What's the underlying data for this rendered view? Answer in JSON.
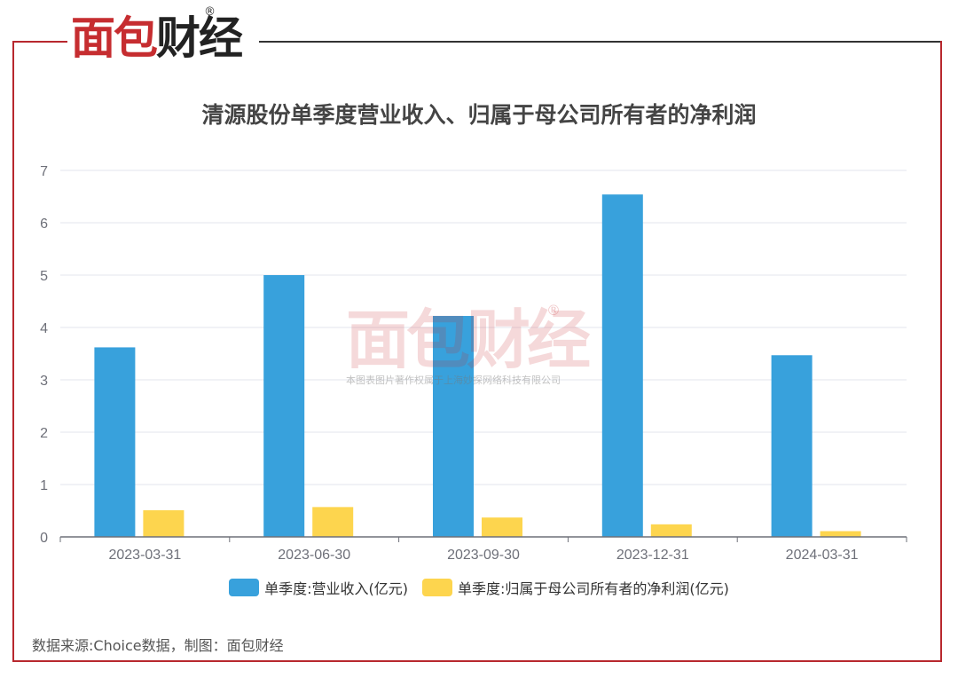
{
  "brand": {
    "logo_red": "面包",
    "logo_black": "财经",
    "registered": "®"
  },
  "watermark": {
    "logo": "面包财经",
    "registered": "®",
    "note": "本图表图片著作权属于上海妙探网络科技有限公司"
  },
  "source_note": "数据来源:Choice数据，制图：面包财经",
  "colors": {
    "accent_red": "#c62d30",
    "revenue": "#38a1dc",
    "profit": "#fdd54e",
    "axis": "#6e7079",
    "grid": "#e3e6ee"
  },
  "chart_data": {
    "type": "bar",
    "title": "清源股份单季度营业收入、归属于母公司所有者的净利润",
    "categories": [
      "2023-03-31",
      "2023-06-30",
      "2023-09-30",
      "2023-12-31",
      "2024-03-31"
    ],
    "series": [
      {
        "name": "单季度:营业收入(亿元)",
        "values": [
          3.62,
          5.0,
          4.22,
          6.54,
          3.47
        ]
      },
      {
        "name": "单季度:归属于母公司所有者的净利润(亿元)",
        "values": [
          0.51,
          0.57,
          0.37,
          0.24,
          0.11
        ]
      }
    ],
    "ylim": [
      0,
      7
    ],
    "yticks": [
      0,
      1,
      2,
      3,
      4,
      5,
      6,
      7
    ],
    "grid": true,
    "legend_position": "bottom"
  }
}
